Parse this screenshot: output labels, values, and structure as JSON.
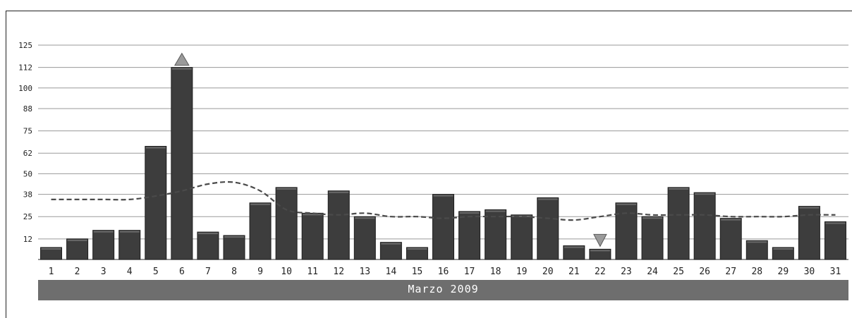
{
  "chart_data": {
    "type": "bar",
    "title": "",
    "xlabel": "Marzo 2009",
    "ylabel": "",
    "ylim": [
      0,
      125
    ],
    "yticks": [
      "12",
      "25",
      "38",
      "50",
      "62",
      "75",
      "88",
      "100",
      "112",
      "125"
    ],
    "categories": [
      "1",
      "2",
      "3",
      "4",
      "5",
      "6",
      "7",
      "8",
      "9",
      "10",
      "11",
      "12",
      "13",
      "14",
      "15",
      "16",
      "17",
      "18",
      "19",
      "20",
      "21",
      "22",
      "23",
      "24",
      "25",
      "26",
      "27",
      "28",
      "29",
      "30",
      "31"
    ],
    "series": [
      {
        "type": "bar",
        "values": [
          7,
          12,
          17,
          17,
          66,
          112,
          16,
          14,
          33,
          42,
          27,
          40,
          25,
          10,
          7,
          38,
          28,
          29,
          26,
          36,
          8,
          6,
          33,
          25,
          42,
          39,
          24,
          11,
          7,
          31,
          22
        ]
      },
      {
        "type": "line",
        "style": "dashed",
        "values": [
          35,
          35,
          35,
          35,
          37,
          40,
          44,
          45,
          40,
          29,
          27,
          26,
          27,
          25,
          25,
          24,
          25,
          25,
          25,
          24,
          23,
          25,
          27,
          26,
          26,
          26,
          25,
          25,
          25,
          26,
          26
        ]
      }
    ],
    "markers": [
      {
        "type": "max",
        "category": "6",
        "symbol": "up-triangle"
      },
      {
        "type": "min",
        "category": "22",
        "symbol": "down-triangle"
      }
    ],
    "grid": true,
    "legend": "none",
    "colors": {
      "bar": "#3d3d3d",
      "bar_edge": "#1e1e1e",
      "line": "#4a4a4a",
      "grid": "#9a9a9a",
      "marker": "#9a9a9a",
      "month_bar": "#6e6e6e"
    }
  }
}
